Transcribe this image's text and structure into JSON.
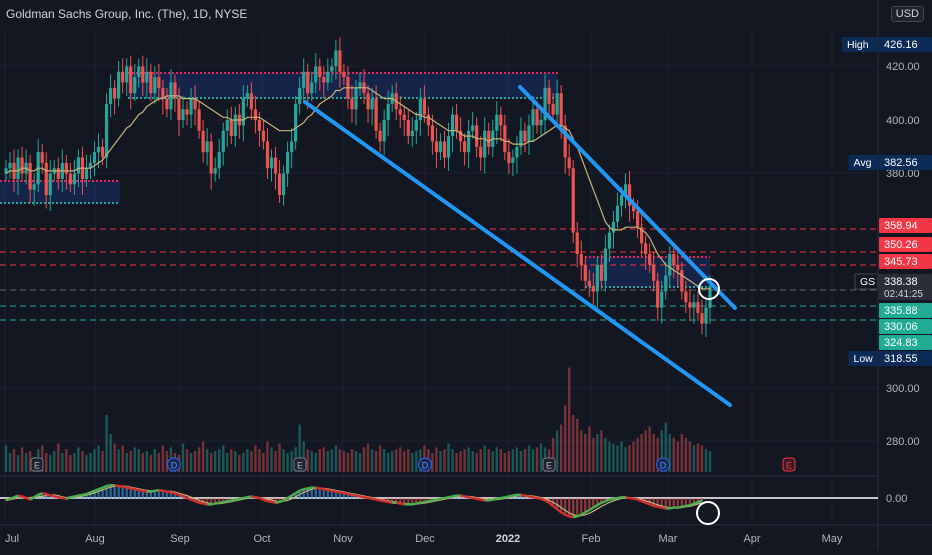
{
  "header": {
    "title": "Goldman Sachs Group, Inc. (The), 1D, NYSE",
    "currency": "USD"
  },
  "colors": {
    "up": "#26a69a",
    "down": "#ef5350",
    "channel": "#2196f3",
    "ma": "#c8b479",
    "red_line": "#f23645",
    "green_line": "#22ab94"
  },
  "chart_data": {
    "type": "candlestick",
    "x_ticks": [
      "Jul",
      "Aug",
      "Sep",
      "Oct",
      "Nov",
      "Dec",
      "2022",
      "Feb",
      "Mar",
      "Apr",
      "May"
    ],
    "y_ticks": [
      "420.00",
      "400.00",
      "380.00",
      "300.00",
      "280.00"
    ],
    "indicator_tick": "0.00",
    "ylim": [
      272,
      440
    ],
    "price_tags": [
      {
        "name": "High",
        "value": "426.16",
        "kind": "dark"
      },
      {
        "name": "Avg",
        "value": "382.56",
        "kind": "dark"
      },
      {
        "name": "",
        "value": "358.94",
        "kind": "red"
      },
      {
        "name": "",
        "value": "350.26",
        "kind": "red"
      },
      {
        "name": "",
        "value": "345.73",
        "kind": "red"
      },
      {
        "name": "GS",
        "value": "338.38",
        "kind": "last",
        "countdown": "02:41:25"
      },
      {
        "name": "",
        "value": "335.88",
        "kind": "green"
      },
      {
        "name": "",
        "value": "330.06",
        "kind": "green"
      },
      {
        "name": "",
        "value": "324.83",
        "kind": "green"
      },
      {
        "name": "Low",
        "value": "318.55",
        "kind": "dark"
      }
    ],
    "events": [
      {
        "label": "E",
        "type": "earnings"
      },
      {
        "label": "D",
        "type": "dividend"
      },
      {
        "label": "E",
        "type": "earnings"
      },
      {
        "label": "D",
        "type": "dividend"
      },
      {
        "label": "E",
        "type": "earnings"
      },
      {
        "label": "D",
        "type": "dividend"
      },
      {
        "label": "E",
        "type": "earnings-future"
      }
    ],
    "close": [
      382,
      384,
      378,
      386,
      380,
      384,
      374,
      376,
      388,
      384,
      372,
      380,
      382,
      378,
      384,
      380,
      376,
      380,
      386,
      378,
      382,
      384,
      388,
      390,
      386,
      406,
      412,
      408,
      418,
      414,
      420,
      410,
      416,
      420,
      414,
      418,
      410,
      416,
      412,
      408,
      404,
      414,
      408,
      400,
      404,
      402,
      408,
      404,
      396,
      388,
      392,
      380,
      382,
      388,
      396,
      400,
      394,
      402,
      398,
      408,
      410,
      404,
      400,
      396,
      392,
      382,
      386,
      380,
      372,
      380,
      388,
      392,
      406,
      412,
      418,
      410,
      414,
      420,
      416,
      414,
      418,
      420,
      426,
      418,
      416,
      408,
      404,
      412,
      414,
      410,
      404,
      408,
      396,
      392,
      400,
      406,
      410,
      404,
      402,
      400,
      394,
      396,
      400,
      408,
      402,
      398,
      392,
      388,
      392,
      386,
      394,
      402,
      396,
      392,
      388,
      396,
      398,
      390,
      386,
      396,
      390,
      396,
      402,
      398,
      388,
      384,
      386,
      390,
      396,
      392,
      398,
      404,
      398,
      400,
      412,
      406,
      402,
      410,
      398,
      386,
      382,
      358,
      350,
      346,
      340,
      338,
      336,
      346,
      340,
      352,
      358,
      362,
      368,
      372,
      376,
      368,
      366,
      360,
      354,
      350,
      346,
      340,
      330,
      336,
      342,
      350,
      346,
      344,
      336,
      332,
      330,
      332,
      328,
      324,
      330,
      338
    ],
    "ma": [
      380,
      381,
      381,
      381,
      382,
      382,
      381,
      381,
      382,
      382,
      381,
      381,
      381,
      381,
      381,
      381,
      381,
      381,
      382,
      382,
      382,
      382,
      383,
      384,
      385,
      387,
      389,
      391,
      393,
      395,
      397,
      398,
      400,
      402,
      403,
      405,
      406,
      407,
      408,
      408,
      409,
      409,
      409,
      409,
      408,
      408,
      408,
      408,
      407,
      406,
      405,
      404,
      403,
      402,
      401,
      401,
      400,
      400,
      400,
      400,
      401,
      401,
      401,
      401,
      400,
      399,
      398,
      397,
      396,
      396,
      396,
      396,
      397,
      398,
      399,
      401,
      402,
      404,
      406,
      407,
      408,
      409,
      411,
      411,
      412,
      412,
      412,
      412,
      412,
      412,
      412,
      411,
      410,
      409,
      408,
      408,
      408,
      407,
      406,
      405,
      404,
      403,
      402,
      402,
      401,
      401,
      400,
      399,
      398,
      397,
      396,
      396,
      396,
      395,
      394,
      394,
      394,
      393,
      393,
      393,
      392,
      393,
      393,
      393,
      392,
      392,
      391,
      391,
      391,
      391,
      392,
      392,
      393,
      394,
      395,
      396,
      397,
      398,
      398,
      397,
      396,
      393,
      390,
      386,
      382,
      378,
      374,
      370,
      366,
      362,
      360,
      359,
      359,
      359,
      360,
      360,
      360,
      360,
      359,
      358,
      356,
      353,
      350,
      348,
      346,
      345,
      344,
      343,
      342,
      341,
      340,
      339,
      338,
      337,
      337,
      337
    ],
    "volume": [
      0.14,
      0.1,
      0.12,
      0.09,
      0.13,
      0.1,
      0.11,
      0.08,
      0.12,
      0.14,
      0.1,
      0.09,
      0.11,
      0.15,
      0.1,
      0.12,
      0.09,
      0.1,
      0.13,
      0.11,
      0.09,
      0.1,
      0.12,
      0.14,
      0.11,
      0.3,
      0.2,
      0.15,
      0.12,
      0.14,
      0.1,
      0.11,
      0.13,
      0.12,
      0.1,
      0.11,
      0.09,
      0.12,
      0.1,
      0.14,
      0.11,
      0.13,
      0.1,
      0.09,
      0.15,
      0.12,
      0.1,
      0.11,
      0.13,
      0.16,
      0.12,
      0.1,
      0.11,
      0.12,
      0.14,
      0.1,
      0.12,
      0.11,
      0.09,
      0.1,
      0.12,
      0.11,
      0.14,
      0.12,
      0.1,
      0.16,
      0.13,
      0.11,
      0.15,
      0.12,
      0.1,
      0.11,
      0.13,
      0.25,
      0.16,
      0.12,
      0.11,
      0.1,
      0.12,
      0.13,
      0.11,
      0.12,
      0.14,
      0.12,
      0.11,
      0.1,
      0.12,
      0.11,
      0.1,
      0.13,
      0.15,
      0.12,
      0.11,
      0.14,
      0.12,
      0.1,
      0.11,
      0.12,
      0.13,
      0.11,
      0.12,
      0.1,
      0.11,
      0.12,
      0.14,
      0.12,
      0.1,
      0.13,
      0.11,
      0.12,
      0.15,
      0.12,
      0.1,
      0.11,
      0.12,
      0.13,
      0.11,
      0.1,
      0.12,
      0.14,
      0.12,
      0.11,
      0.13,
      0.12,
      0.1,
      0.11,
      0.12,
      0.13,
      0.11,
      0.12,
      0.14,
      0.12,
      0.13,
      0.15,
      0.13,
      0.12,
      0.18,
      0.22,
      0.25,
      0.35,
      0.55,
      0.3,
      0.28,
      0.22,
      0.2,
      0.24,
      0.18,
      0.2,
      0.22,
      0.18,
      0.16,
      0.15,
      0.14,
      0.16,
      0.13,
      0.14,
      0.16,
      0.18,
      0.2,
      0.22,
      0.24,
      0.2,
      0.18,
      0.22,
      0.26,
      0.2,
      0.18,
      0.16,
      0.2,
      0.18,
      0.16,
      0.14,
      0.15,
      0.14,
      0.12,
      0.11
    ],
    "oscillator": [
      -0.3,
      -0.1,
      0.1,
      0.3,
      0.2,
      0.0,
      -0.2,
      0.1,
      0.4,
      0.6,
      0.5,
      0.3,
      0.2,
      0.1,
      0.0,
      -0.1,
      0.1,
      0.2,
      0.3,
      0.4,
      0.5,
      0.7,
      0.9,
      1.1,
      1.3,
      1.5,
      1.6,
      1.6,
      1.5,
      1.4,
      1.3,
      1.2,
      1.1,
      1.0,
      0.9,
      0.8,
      0.8,
      0.9,
      1.0,
      0.9,
      0.8,
      0.7,
      0.6,
      0.4,
      0.2,
      0.0,
      -0.2,
      -0.4,
      -0.6,
      -0.7,
      -0.8,
      -0.8,
      -0.7,
      -0.6,
      -0.5,
      -0.4,
      -0.3,
      -0.2,
      -0.1,
      0.0,
      0.1,
      0.2,
      0.1,
      0.0,
      -0.2,
      -0.4,
      -0.5,
      -0.6,
      -0.5,
      -0.3,
      0.0,
      0.3,
      0.6,
      0.9,
      1.1,
      1.2,
      1.3,
      1.3,
      1.2,
      1.1,
      1.0,
      0.9,
      0.8,
      0.7,
      0.6,
      0.5,
      0.4,
      0.3,
      0.2,
      0.1,
      0.0,
      -0.1,
      -0.2,
      -0.3,
      -0.4,
      -0.5,
      -0.6,
      -0.6,
      -0.7,
      -0.8,
      -0.8,
      -0.8,
      -0.7,
      -0.6,
      -0.5,
      -0.4,
      -0.3,
      -0.2,
      -0.1,
      0.0,
      0.1,
      0.2,
      0.3,
      0.3,
      0.2,
      0.1,
      0.0,
      -0.1,
      -0.2,
      -0.3,
      -0.3,
      -0.2,
      -0.1,
      0.0,
      0.1,
      0.2,
      0.3,
      0.4,
      0.4,
      0.3,
      0.2,
      0.1,
      0.0,
      -0.1,
      -0.3,
      -0.6,
      -1.0,
      -1.4,
      -1.8,
      -2.1,
      -2.3,
      -2.4,
      -2.3,
      -2.1,
      -1.8,
      -1.5,
      -1.2,
      -0.9,
      -0.6,
      -0.4,
      -0.2,
      -0.1,
      0.0,
      0.1,
      0.1,
      0.0,
      -0.1,
      -0.2,
      -0.4,
      -0.6,
      -0.8,
      -1.0,
      -1.1,
      -1.2,
      -1.3,
      -1.3,
      -1.2,
      -1.2,
      -1.1,
      -1.0,
      -0.9,
      -0.7,
      -0.5,
      -0.3
    ]
  }
}
